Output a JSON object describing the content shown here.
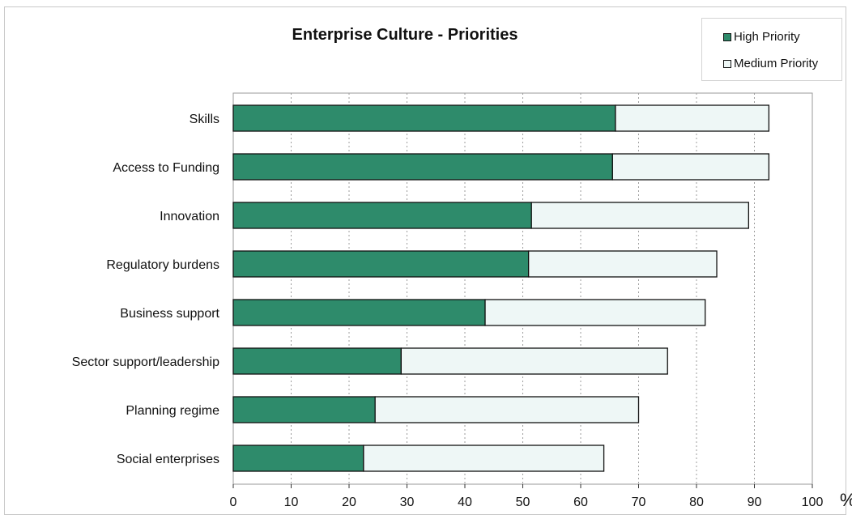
{
  "chart_data": {
    "type": "bar",
    "orientation": "horizontal",
    "stacked": true,
    "title": "Enterprise Culture - Priorities",
    "categories": [
      "Skills",
      "Access to Funding",
      "Innovation",
      "Regulatory burdens",
      "Business support",
      "Sector support/leadership",
      "Planning regime",
      "Social enterprises"
    ],
    "series": [
      {
        "name": "High Priority",
        "color": "#2e8b6b",
        "values": [
          66,
          65.5,
          51.5,
          51,
          43.5,
          29,
          24.5,
          22.5
        ]
      },
      {
        "name": "Medium Priority",
        "color": "#eef7f6",
        "values": [
          26.5,
          27,
          37.5,
          32.5,
          38,
          46,
          45.5,
          41.5
        ]
      }
    ],
    "x_ticks": [
      "0",
      "10",
      "20",
      "30",
      "40",
      "50",
      "60",
      "70",
      "80",
      "90",
      "100"
    ],
    "xlim": [
      0,
      100
    ],
    "x_unit": "%",
    "xlabel": "",
    "ylabel": "",
    "grid": "vertical dashed",
    "legend_position": "top-right"
  }
}
